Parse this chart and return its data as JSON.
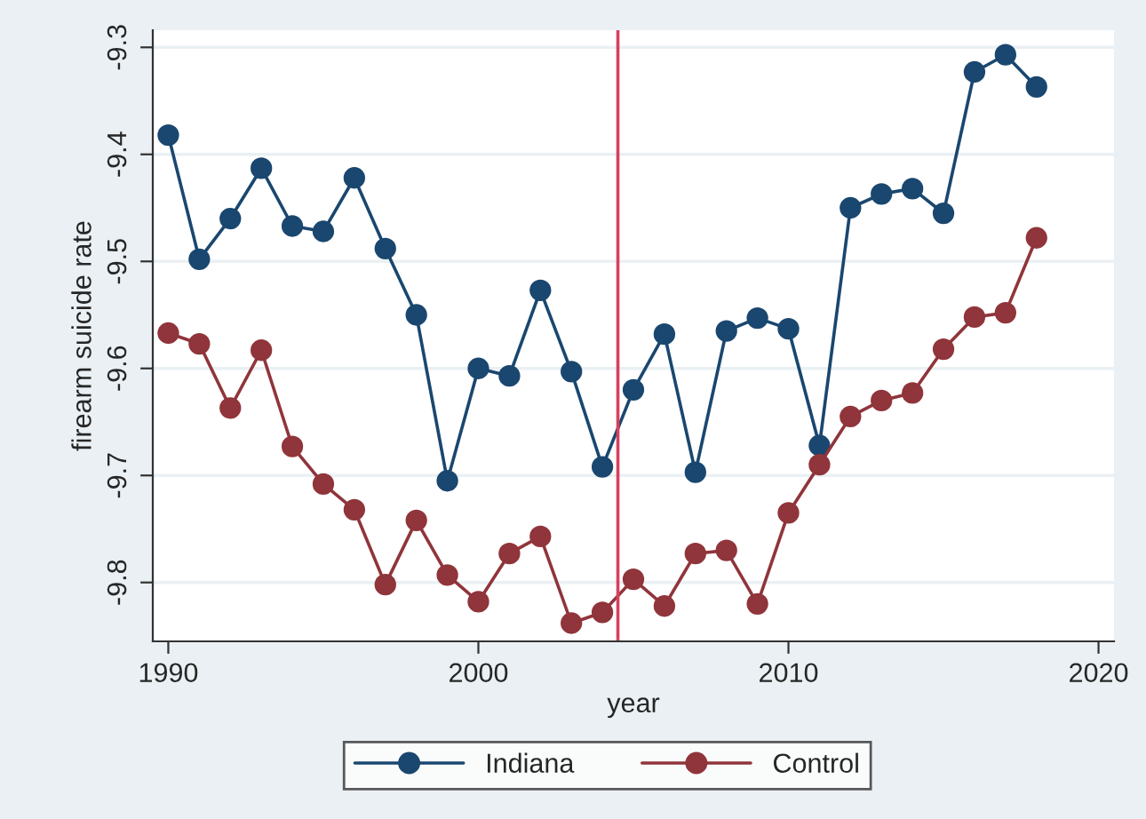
{
  "chart_data": {
    "type": "line",
    "xlabel": "year",
    "ylabel": "firearm suicide rate",
    "x": [
      1990,
      1991,
      1992,
      1993,
      1994,
      1995,
      1996,
      1997,
      1998,
      1999,
      2000,
      2001,
      2002,
      2003,
      2004,
      2005,
      2006,
      2007,
      2008,
      2009,
      2010,
      2011,
      2012,
      2013,
      2014,
      2015,
      2016,
      2017,
      2018
    ],
    "series": [
      {
        "name": "Indiana",
        "color": "#1a476f",
        "values": [
          -9.382,
          -9.498,
          -9.46,
          -9.413,
          -9.467,
          -9.472,
          -9.422,
          -9.488,
          -9.55,
          -9.705,
          -9.6,
          -9.607,
          -9.527,
          -9.603,
          -9.692,
          -9.62,
          -9.568,
          -9.697,
          -9.565,
          -9.553,
          -9.563,
          -9.672,
          -9.45,
          -9.437,
          -9.432,
          -9.455,
          -9.323,
          -9.307,
          -9.337
        ]
      },
      {
        "name": "Control",
        "color": "#90353b",
        "values": [
          -9.567,
          -9.577,
          -9.637,
          -9.583,
          -9.673,
          -9.708,
          -9.732,
          -9.802,
          -9.742,
          -9.793,
          -9.818,
          -9.773,
          -9.757,
          -9.838,
          -9.828,
          -9.797,
          -9.822,
          -9.773,
          -9.77,
          -9.82,
          -9.735,
          -9.69,
          -9.645,
          -9.63,
          -9.623,
          -9.582,
          -9.552,
          -9.548,
          -9.478
        ]
      }
    ],
    "xlim": [
      1989.5,
      2020.5
    ],
    "xticks": [
      1990,
      2000,
      2010,
      2020
    ],
    "ylim": [
      -9.855,
      -9.284
    ],
    "yticks": [
      -9.3,
      -9.4,
      -9.5,
      -9.6,
      -9.7,
      -9.8
    ],
    "ref_lines": [
      {
        "axis": "x",
        "value": 2004.5,
        "color": "#d6405e"
      }
    ],
    "grid": "y",
    "legend": "bottom",
    "marker": "circle",
    "line_style": "solid"
  }
}
